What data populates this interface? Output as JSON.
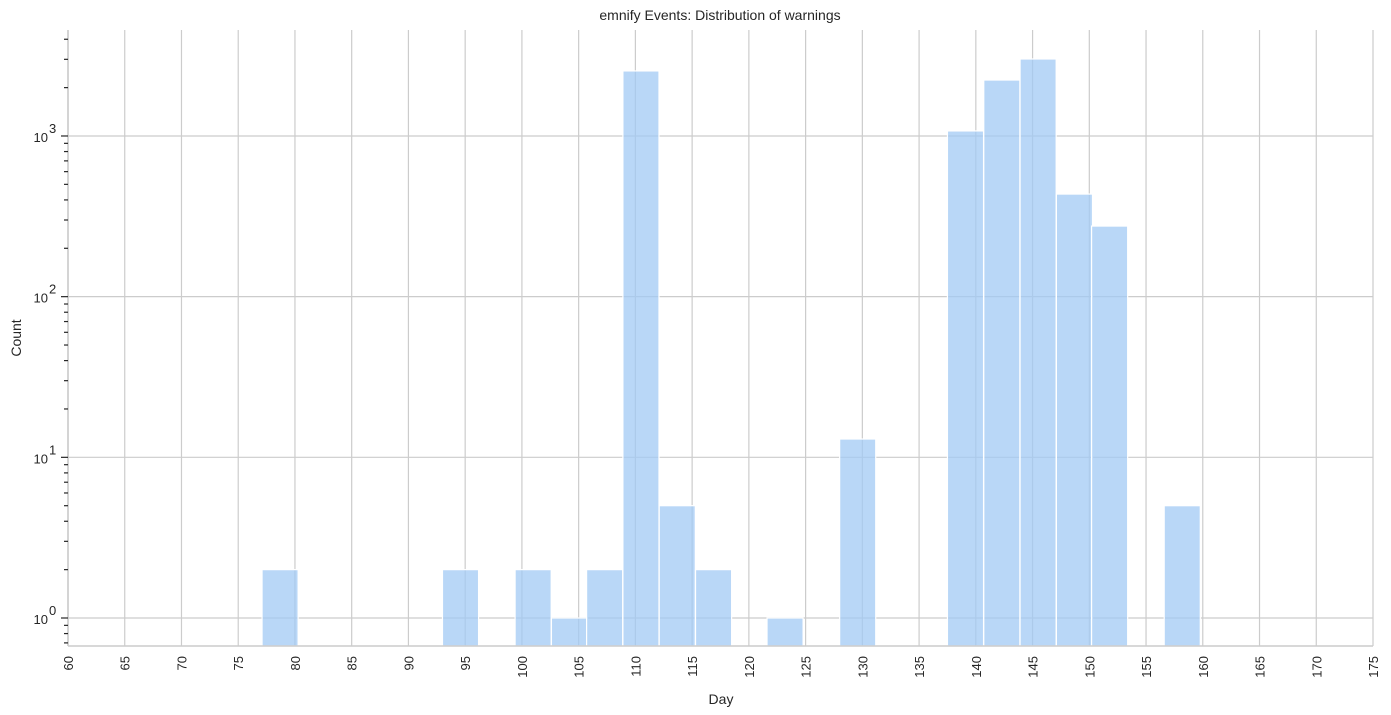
{
  "chart_data": {
    "type": "bar",
    "subtype": "histogram",
    "title": "emnify Events: Distribution of warnings",
    "xlabel": "Day",
    "ylabel": "Count",
    "yscale": "log",
    "xlim": [
      60,
      175
    ],
    "ylim": [
      0.67,
      4570
    ],
    "grid": true,
    "legend": null,
    "bar_color": "#a1c9f4",
    "bar_alpha": 0.75,
    "bin_width": 3.18,
    "x_ticks": [
      60,
      65,
      70,
      75,
      80,
      85,
      90,
      95,
      100,
      105,
      110,
      115,
      120,
      125,
      130,
      135,
      140,
      145,
      150,
      155,
      160,
      165,
      170,
      175
    ],
    "y_ticks": [
      {
        "value": 1,
        "label": "10",
        "exp": "0"
      },
      {
        "value": 10,
        "label": "10",
        "exp": "1"
      },
      {
        "value": 100,
        "label": "10",
        "exp": "2"
      },
      {
        "value": 1000,
        "label": "10",
        "exp": "3"
      }
    ],
    "bins": [
      {
        "start": 77.1,
        "count": 2
      },
      {
        "start": 93.0,
        "count": 2
      },
      {
        "start": 99.4,
        "count": 2
      },
      {
        "start": 102.6,
        "count": 1
      },
      {
        "start": 105.7,
        "count": 2
      },
      {
        "start": 108.9,
        "count": 2540
      },
      {
        "start": 112.1,
        "count": 5
      },
      {
        "start": 115.3,
        "count": 2
      },
      {
        "start": 121.6,
        "count": 1
      },
      {
        "start": 128.0,
        "count": 13
      },
      {
        "start": 137.5,
        "count": 1075
      },
      {
        "start": 140.7,
        "count": 2230
      },
      {
        "start": 143.9,
        "count": 3015
      },
      {
        "start": 147.1,
        "count": 435
      },
      {
        "start": 150.2,
        "count": 275
      },
      {
        "start": 156.6,
        "count": 5
      }
    ]
  }
}
